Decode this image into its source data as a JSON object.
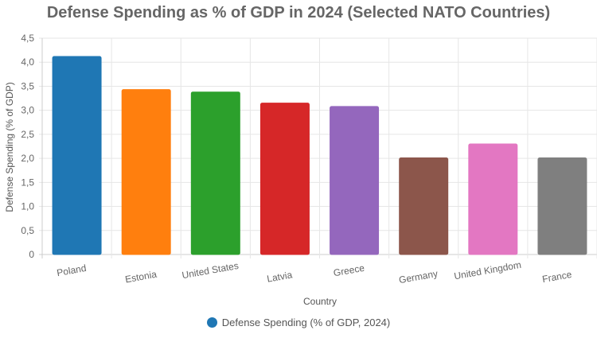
{
  "chart_data": {
    "type": "bar",
    "title": "Defense Spending as % of GDP in 2024 (Selected NATO Countries)",
    "xlabel": "Country",
    "ylabel": "Defense Spending (% of GDP)",
    "categories": [
      "Poland",
      "Estonia",
      "United States",
      "Latvia",
      "Greece",
      "Germany",
      "United Kingdom",
      "France"
    ],
    "series": [
      {
        "name": "Defense Spending (% of GDP, 2024)",
        "values": [
          4.12,
          3.43,
          3.38,
          3.15,
          3.08,
          2.01,
          2.3,
          2.01
        ]
      }
    ],
    "colors": [
      "#1f77b4",
      "#ff7f0e",
      "#2ca02c",
      "#d62728",
      "#9467bd",
      "#8c564b",
      "#e377c2",
      "#7f7f7f"
    ],
    "yticks": [
      "0",
      "0,5",
      "1,0",
      "1,5",
      "2,0",
      "2,5",
      "3,0",
      "3,5",
      "4,0",
      "4,5"
    ],
    "ylim": [
      0,
      4.5
    ],
    "grid": true,
    "legend_position": "bottom"
  }
}
